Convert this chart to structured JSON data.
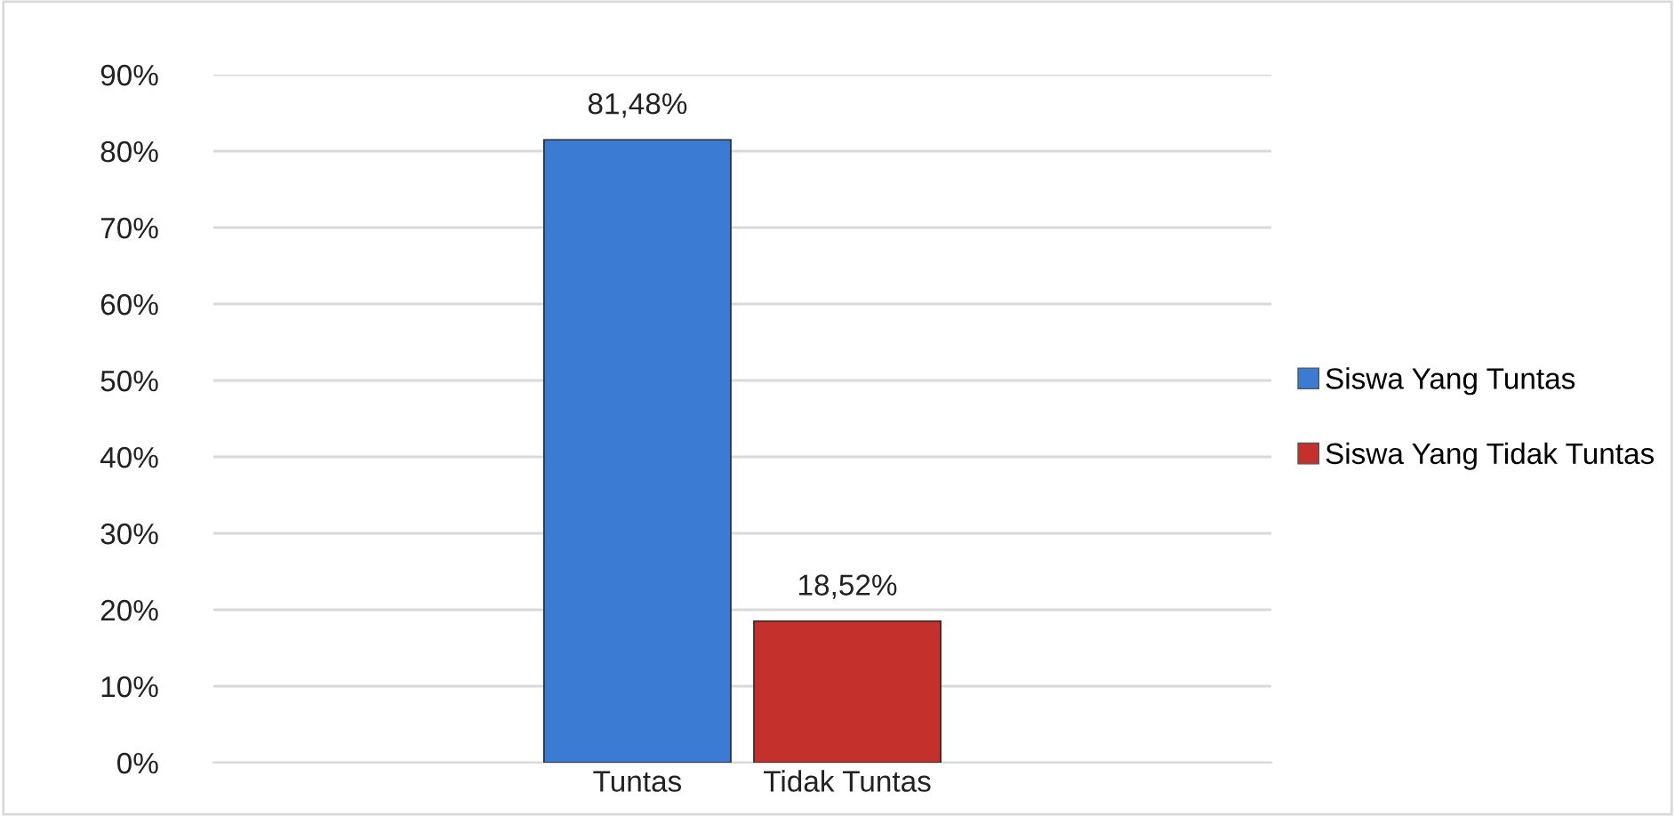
{
  "chart_data": {
    "type": "bar",
    "categories": [
      "Tuntas",
      "Tidak Tuntas"
    ],
    "series": [
      {
        "name": "Siswa Yang Tuntas",
        "color": "#3b7bd4",
        "values": [
          81.48,
          null
        ],
        "value_labels": [
          "81,48%",
          null
        ]
      },
      {
        "name": "Siswa Yang Tidak Tuntas",
        "color": "#c4302b",
        "values": [
          null,
          18.52
        ],
        "value_labels": [
          null,
          "18,52%"
        ]
      }
    ],
    "ylim": [
      0,
      90
    ],
    "yticks": [
      {
        "value": 0,
        "label": "0%"
      },
      {
        "value": 10,
        "label": "10%"
      },
      {
        "value": 20,
        "label": "20%"
      },
      {
        "value": 30,
        "label": "30%"
      },
      {
        "value": 40,
        "label": "40%"
      },
      {
        "value": 50,
        "label": "50%"
      },
      {
        "value": 60,
        "label": "60%"
      },
      {
        "value": 70,
        "label": "70%"
      },
      {
        "value": 80,
        "label": "80%"
      },
      {
        "value": 90,
        "label": "90%"
      }
    ],
    "grid": "y",
    "legend": "right"
  }
}
